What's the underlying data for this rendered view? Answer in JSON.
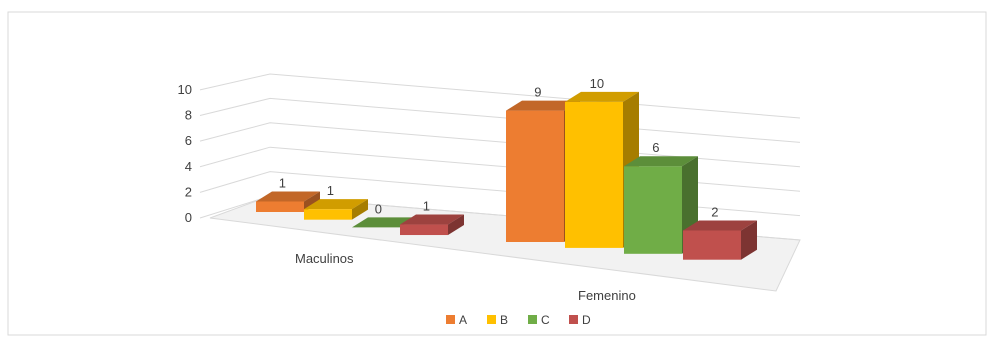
{
  "chart_data": {
    "type": "bar",
    "categories": [
      "Maculinos",
      "Femenino"
    ],
    "series": [
      {
        "name": "A",
        "values": [
          1,
          9
        ],
        "color": "#ED7D31"
      },
      {
        "name": "B",
        "values": [
          1,
          10
        ],
        "color": "#FFC000"
      },
      {
        "name": "C",
        "values": [
          0,
          6
        ],
        "color": "#70AD47"
      },
      {
        "name": "D",
        "values": [
          1,
          2
        ],
        "color": "#C0504D"
      }
    ],
    "yticks": [
      "0",
      "2",
      "4",
      "6",
      "8",
      "10"
    ],
    "ylim": [
      0,
      10
    ],
    "title": "",
    "xlabel": "",
    "ylabel": "",
    "legend_position": "bottom",
    "grid": true,
    "style": "3d-clustered-column"
  }
}
